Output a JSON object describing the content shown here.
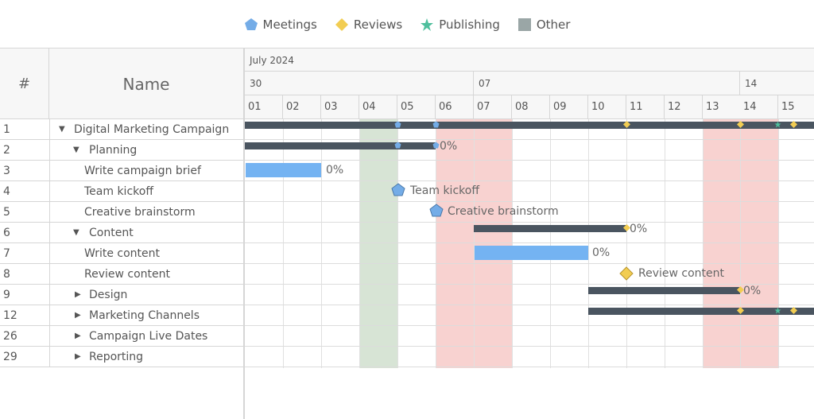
{
  "legend": [
    {
      "label": "Meetings",
      "icon": "pentagon-icon",
      "color": "#74ace7"
    },
    {
      "label": "Reviews",
      "icon": "diamond-icon",
      "color": "#f2cd52"
    },
    {
      "label": "Publishing",
      "icon": "star-icon",
      "color": "#4fbf9d"
    },
    {
      "label": "Other",
      "icon": "square-icon",
      "color": "#9aa6a6"
    }
  ],
  "headers": {
    "num": "#",
    "name": "Name"
  },
  "timeline": {
    "month": "July 2024",
    "weeks": [
      "30",
      "07",
      "14"
    ],
    "days": [
      "01",
      "02",
      "03",
      "04",
      "05",
      "06",
      "07",
      "08",
      "09",
      "10",
      "11",
      "12",
      "13",
      "14",
      "15"
    ]
  },
  "rows": [
    {
      "num": "1",
      "name": "Digital Marketing Campaign",
      "toggle": "expanded"
    },
    {
      "num": "2",
      "name": "Planning",
      "toggle": "expanded"
    },
    {
      "num": "3",
      "name": "Write campaign brief",
      "toggle": "none"
    },
    {
      "num": "4",
      "name": "Team kickoff",
      "toggle": "none"
    },
    {
      "num": "5",
      "name": "Creative brainstorm",
      "toggle": "none"
    },
    {
      "num": "6",
      "name": "Content",
      "toggle": "expanded"
    },
    {
      "num": "7",
      "name": "Write content",
      "toggle": "none"
    },
    {
      "num": "8",
      "name": "Review content",
      "toggle": "none"
    },
    {
      "num": "9",
      "name": "Design",
      "toggle": "collapsed"
    },
    {
      "num": "12",
      "name": "Marketing Channels",
      "toggle": "collapsed"
    },
    {
      "num": "26",
      "name": "Campaign Live Dates",
      "toggle": "collapsed"
    },
    {
      "num": "29",
      "name": "Reporting",
      "toggle": "collapsed"
    }
  ],
  "bar_labels": {
    "planning_progress": "0%",
    "brief_progress": "0%",
    "kickoff": "Team kickoff",
    "brainstorm": "Creative brainstorm",
    "content_progress": "0%",
    "write_progress": "0%",
    "review": "Review content",
    "design_progress": "0%"
  },
  "colors": {
    "summary_bar": "#4a5560",
    "task_bar": "#74b3f2",
    "weekend_green": "#d7e4d5",
    "weekend_red": "#f8d2d0"
  }
}
